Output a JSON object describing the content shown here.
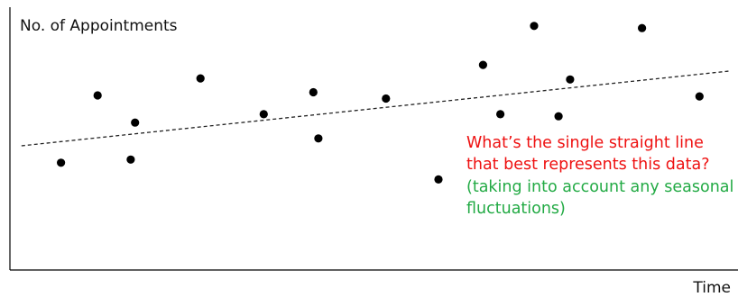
{
  "chart_data": {
    "type": "scatter",
    "title": "",
    "xlabel": "Time",
    "ylabel": "No. of Appointments",
    "xlim": [
      0,
      100
    ],
    "ylim": [
      0,
      100
    ],
    "grid": false,
    "ticks": false,
    "points": [
      {
        "x": 7.1,
        "y": 41.1
      },
      {
        "x": 12.2,
        "y": 66.9
      },
      {
        "x": 16.8,
        "y": 42.3
      },
      {
        "x": 17.4,
        "y": 56.5
      },
      {
        "x": 26.5,
        "y": 73.4
      },
      {
        "x": 35.3,
        "y": 59.7
      },
      {
        "x": 42.2,
        "y": 68.1
      },
      {
        "x": 42.9,
        "y": 50.4
      },
      {
        "x": 52.3,
        "y": 65.7
      },
      {
        "x": 59.6,
        "y": 34.7
      },
      {
        "x": 65.8,
        "y": 78.6
      },
      {
        "x": 68.2,
        "y": 59.7
      },
      {
        "x": 72.9,
        "y": 93.5
      },
      {
        "x": 76.3,
        "y": 58.9
      },
      {
        "x": 77.9,
        "y": 73.0
      },
      {
        "x": 87.9,
        "y": 92.7
      },
      {
        "x": 95.9,
        "y": 66.5
      }
    ],
    "trendline": {
      "style": "dashed",
      "x": [
        1.6,
        100
      ],
      "y": [
        47.6,
        76.2
      ]
    }
  },
  "annotation": {
    "question_line1": "What’s the single straight line",
    "question_line2": "that best represents this data?",
    "note_line1": "(taking into account any seasonal",
    "note_line2": "fluctuations)",
    "question_color": "#ee1111",
    "note_color": "#22aa44"
  }
}
